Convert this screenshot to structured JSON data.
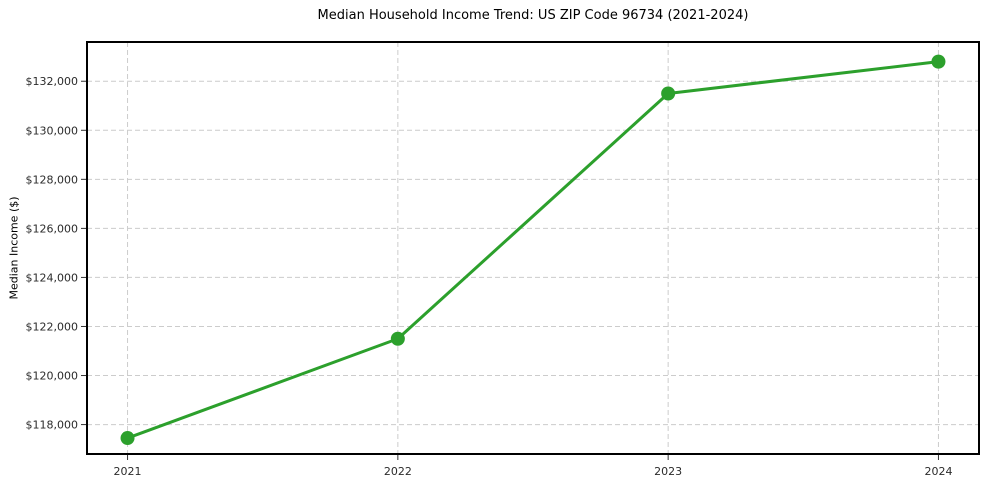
{
  "figure": {
    "title": "Median Household Income Trend: US ZIP Code 96734 (2021-2024)",
    "ylabel": "Median Income ($)",
    "xlabel": ""
  },
  "chart_data": {
    "type": "line",
    "title": "Median Household Income Trend: US ZIP Code 96734 (2021-2024)",
    "xlabel": "",
    "ylabel": "Median Income ($)",
    "x": [
      2021,
      2022,
      2023,
      2024
    ],
    "x_tick_labels": [
      "2021",
      "2022",
      "2023",
      "2024"
    ],
    "series": [
      {
        "name": "Median Household Income",
        "values": [
          117450,
          121500,
          131500,
          132800
        ]
      }
    ],
    "y_ticks": [
      {
        "value": 118000,
        "label": "$118,000"
      },
      {
        "value": 120000,
        "label": "$120,000"
      },
      {
        "value": 122000,
        "label": "$122,000"
      },
      {
        "value": 124000,
        "label": "$124,000"
      },
      {
        "value": 126000,
        "label": "$126,000"
      },
      {
        "value": 128000,
        "label": "$128,000"
      },
      {
        "value": 130000,
        "label": "$130,000"
      },
      {
        "value": 132000,
        "label": "$132,000"
      }
    ],
    "ylim": [
      116800,
      133600
    ],
    "xlim": [
      2020.85,
      2024.15
    ],
    "grid": true,
    "grid_style": "dashed",
    "legend": false,
    "colors": {
      "line": "#2ca02c",
      "marker": "#2ca02c",
      "grid": "#cccccc",
      "axis_frame": "#000000",
      "tick": "#333333",
      "tick_label": "#2b2b2b",
      "background": "#ffffff"
    },
    "line_width": 3,
    "marker": "circle",
    "marker_radius": 7
  }
}
